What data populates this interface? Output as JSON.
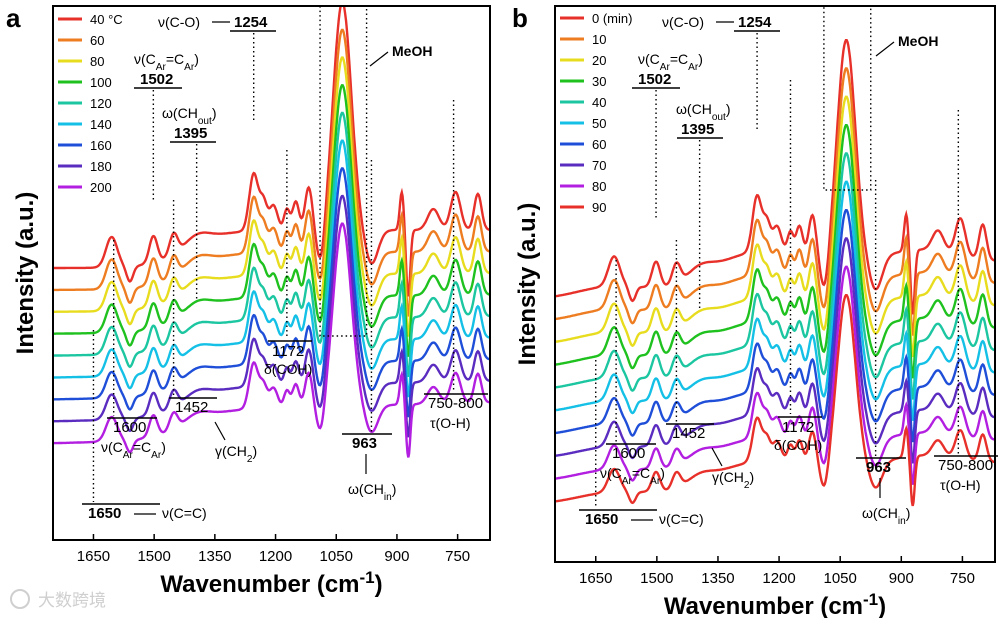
{
  "figure_caption_source": "",
  "watermark_text": "大数跨境",
  "colors": [
    "#e8302a",
    "#ee7d22",
    "#e8dc1e",
    "#1fc11f",
    "#1bc6a1",
    "#14c0e6",
    "#1f4fd8",
    "#5a2cc0",
    "#b21fe0"
  ],
  "chart_data": [
    {
      "type": "line",
      "panel_label": "a",
      "xlabel": "Wavenumber (cm",
      "xlabel_sup": "-1",
      "xlabel_tail": ")",
      "ylabel": "Intensity (a.u.)",
      "xlim": [
        1750,
        670
      ],
      "x_ticks": [
        "1650",
        "1500",
        "1350",
        "1200",
        "1050",
        "900",
        "750"
      ],
      "x_tick_values": [
        1650,
        1500,
        1350,
        1200,
        1050,
        900,
        750
      ],
      "legend_title_first": "40 °C",
      "series": [
        {
          "name": "40 °C"
        },
        {
          "name": "60"
        },
        {
          "name": "80"
        },
        {
          "name": "100"
        },
        {
          "name": "120"
        },
        {
          "name": "140"
        },
        {
          "name": "160"
        },
        {
          "name": "180"
        },
        {
          "name": "200"
        }
      ],
      "peaks": [
        {
          "x": 1650,
          "label": "1650"
        },
        {
          "x": 1600,
          "label": "1600"
        },
        {
          "x": 1502,
          "label": "1502"
        },
        {
          "x": 1452,
          "label": "1452"
        },
        {
          "x": 1395,
          "label": "1395"
        },
        {
          "x": 1254,
          "label": "1254"
        },
        {
          "x": 1172,
          "label": "1172"
        },
        {
          "x": 963,
          "label": "963"
        },
        {
          "x": 760,
          "label": "750-800"
        }
      ],
      "annotations": {
        "nu_co": "ν(C-O)",
        "nu_car_car": "ν(C",
        "omega_chout": "ω(CH",
        "meoh": "MeOH",
        "delta_coh": "δ(COH)",
        "gamma_ch2": "γ(CH",
        "omega_chin": "ω(CH",
        "tau_oh": "τ(O-H)",
        "nu_cc": "ν(C=C)",
        "sub_ar": "Ar",
        "sub_out": "out",
        "sub_in": "in",
        "sub_2": "2"
      }
    },
    {
      "type": "line",
      "panel_label": "b",
      "xlabel": "Wavenumber (cm",
      "xlabel_sup": "-1",
      "xlabel_tail": ")",
      "ylabel": "Intensity (a.u.)",
      "xlim": [
        1750,
        670
      ],
      "x_ticks": [
        "1650",
        "1500",
        "1350",
        "1200",
        "1050",
        "900",
        "750"
      ],
      "x_tick_values": [
        1650,
        1500,
        1350,
        1200,
        1050,
        900,
        750
      ],
      "series": [
        {
          "name": "0 (min)"
        },
        {
          "name": "10"
        },
        {
          "name": "20"
        },
        {
          "name": "30"
        },
        {
          "name": "40"
        },
        {
          "name": "50"
        },
        {
          "name": "60"
        },
        {
          "name": "70"
        },
        {
          "name": "80"
        },
        {
          "name": "90"
        }
      ],
      "peaks": [
        {
          "x": 1650,
          "label": "1650"
        },
        {
          "x": 1600,
          "label": "1600"
        },
        {
          "x": 1502,
          "label": "1502"
        },
        {
          "x": 1452,
          "label": "1452"
        },
        {
          "x": 1395,
          "label": "1395"
        },
        {
          "x": 1254,
          "label": "1254"
        },
        {
          "x": 1172,
          "label": "1172"
        },
        {
          "x": 963,
          "label": "963"
        },
        {
          "x": 760,
          "label": "750-800"
        }
      ],
      "annotations": {
        "nu_co": "ν(C-O)",
        "nu_car_car": "ν(C",
        "omega_chout": "ω(CH",
        "meoh": "MeOH",
        "delta_coh": "δ(COH)",
        "gamma_ch2": "γ(CH",
        "omega_chin": "ω(CH",
        "tau_oh": "τ(O-H)",
        "nu_cc": "ν(C=C)",
        "sub_ar": "Ar",
        "sub_out": "out",
        "sub_in": "in",
        "sub_2": "2"
      }
    }
  ]
}
